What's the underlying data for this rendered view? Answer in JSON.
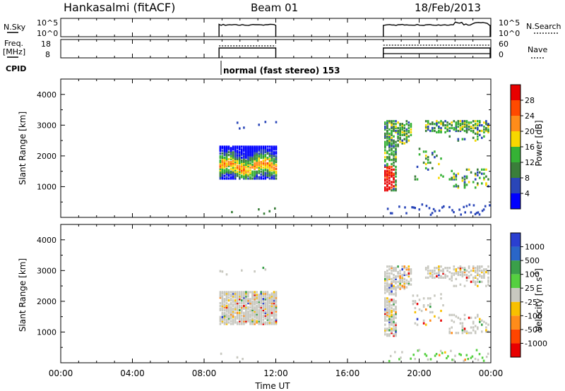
{
  "header": {
    "station": "Hankasalmi (fitACF)",
    "beam": "Beam 01",
    "date": "18/Feb/2013"
  },
  "noise_panel": {
    "left_label": "N.Sky",
    "right_label": "N.Search",
    "left_ticks": [
      "10^5",
      "10^0"
    ],
    "right_ticks": [
      "10^5",
      "10^0"
    ]
  },
  "freq_panel": {
    "label_line1": "Freq.",
    "label_line2": "[MHz]",
    "left_ticks": [
      "18",
      "8"
    ],
    "right_ticks": [
      "60",
      "0"
    ],
    "right_label": "Nave"
  },
  "cpid": {
    "label": "CPID",
    "program": "normal (fast stereo) 153"
  },
  "operation_intervals": [
    {
      "start": "08:50",
      "end": "12:00"
    },
    {
      "start": "18:00",
      "end": "24:00"
    }
  ],
  "colors": {
    "power_scale": [
      "#0000ff",
      "#2a46b8",
      "#3a7e3a",
      "#35b235",
      "#f7d700",
      "#ff8c1a",
      "#ff4a00",
      "#e80000"
    ],
    "velocity_scale": [
      "#2a3fd1",
      "#2a66c8",
      "#3aa04a",
      "#55d040",
      "#c8c8c0",
      "#f8c000",
      "#ff8c1a",
      "#ff4500",
      "#e80000"
    ]
  },
  "chart_data": [
    {
      "type": "heatmap",
      "name": "power",
      "ylabel": "Slant Range [km]",
      "ylim": [
        0,
        4500
      ],
      "yticks": [
        "1000",
        "2000",
        "3000",
        "4000"
      ],
      "colorbar_label": "Power [dB]",
      "colorbar_ticks": [
        "4",
        "8",
        "12",
        "16",
        "20",
        "24",
        "28"
      ]
    },
    {
      "type": "heatmap",
      "name": "velocity",
      "ylabel": "Slant Range [km]",
      "ylim": [
        0,
        4500
      ],
      "yticks": [
        "1000",
        "2000",
        "3000",
        "4000"
      ],
      "colorbar_label": "Velocity [m s",
      "colorbar_label_sup": "-1",
      "colorbar_label_end": "]",
      "colorbar_ticks": [
        "1000",
        "500",
        "100",
        "25",
        "-25",
        "-100",
        "-500",
        "-1000"
      ]
    }
  ],
  "x_axis": {
    "label": "Time UT",
    "ticks": [
      "00:00",
      "04:00",
      "08:00",
      "12:00",
      "16:00",
      "20:00",
      "00:00"
    ]
  }
}
